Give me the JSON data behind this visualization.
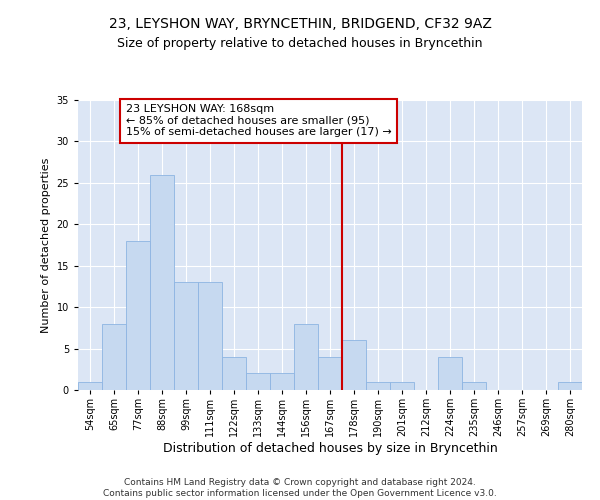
{
  "title1": "23, LEYSHON WAY, BRYNCETHIN, BRIDGEND, CF32 9AZ",
  "title2": "Size of property relative to detached houses in Bryncethin",
  "xlabel": "Distribution of detached houses by size in Bryncethin",
  "ylabel": "Number of detached properties",
  "bar_labels": [
    "54sqm",
    "65sqm",
    "77sqm",
    "88sqm",
    "99sqm",
    "111sqm",
    "122sqm",
    "133sqm",
    "144sqm",
    "156sqm",
    "167sqm",
    "178sqm",
    "190sqm",
    "201sqm",
    "212sqm",
    "224sqm",
    "235sqm",
    "246sqm",
    "257sqm",
    "269sqm",
    "280sqm"
  ],
  "bar_values": [
    1,
    8,
    18,
    26,
    13,
    13,
    4,
    2,
    2,
    8,
    4,
    6,
    1,
    1,
    0,
    4,
    1,
    0,
    0,
    0,
    1
  ],
  "bar_color": "#c6d9f0",
  "bar_edgecolor": "#8db4e2",
  "vline_bar_index": 10,
  "vline_color": "#cc0000",
  "annotation_text": "23 LEYSHON WAY: 168sqm\n← 85% of detached houses are smaller (95)\n15% of semi-detached houses are larger (17) →",
  "annotation_box_color": "#ffffff",
  "annotation_box_edgecolor": "#cc0000",
  "ylim": [
    0,
    35
  ],
  "yticks": [
    0,
    5,
    10,
    15,
    20,
    25,
    30,
    35
  ],
  "background_color": "#dce6f5",
  "grid_color": "#c0cfe8",
  "footer_text": "Contains HM Land Registry data © Crown copyright and database right 2024.\nContains public sector information licensed under the Open Government Licence v3.0.",
  "title1_fontsize": 10,
  "title2_fontsize": 9,
  "ylabel_fontsize": 8,
  "xlabel_fontsize": 9,
  "annotation_fontsize": 8,
  "footer_fontsize": 6.5,
  "tick_fontsize": 7
}
